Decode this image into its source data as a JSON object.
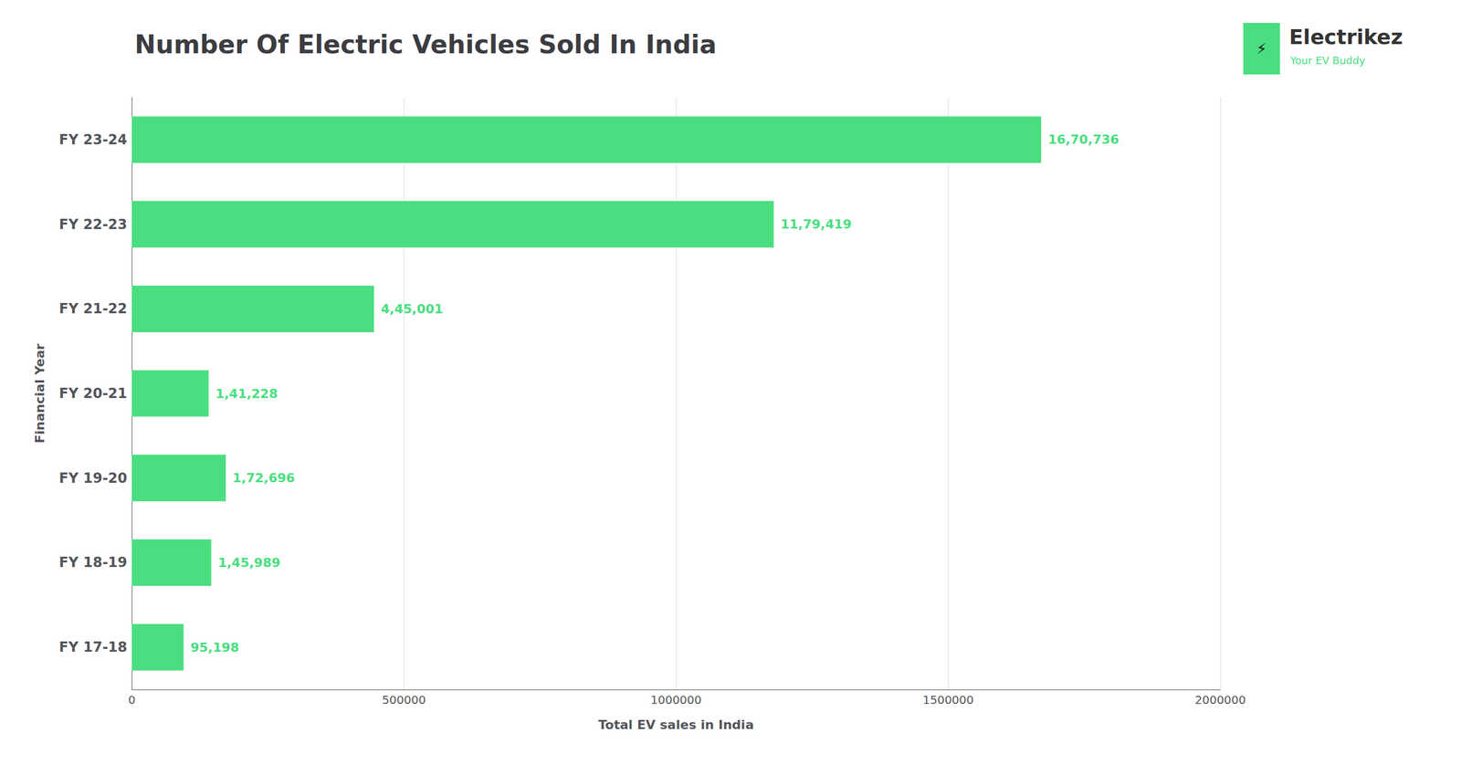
{
  "chart_data": {
    "type": "bar",
    "orientation": "horizontal",
    "title": "Number Of Electric Vehicles Sold In India",
    "xlabel": "Total EV sales in India",
    "ylabel": "Financial Year",
    "categories": [
      "FY 23-24",
      "FY 22-23",
      "FY 21-22",
      "FY 20-21",
      "FY 19-20",
      "FY 18-19",
      "FY 17-18"
    ],
    "values": [
      1670736,
      1179419,
      445001,
      141228,
      172696,
      145989,
      95198
    ],
    "value_labels": [
      "16,70,736",
      "11,79,419",
      "4,45,001",
      "1,41,228",
      "1,72,696",
      "1,45,989",
      "95,198"
    ],
    "data_labels": true,
    "color": "#4ade80",
    "xlim": [
      0,
      2000000
    ],
    "xticks": [
      0,
      500000,
      1000000,
      1500000,
      2000000
    ],
    "grid": true,
    "annotations": [
      "⚡",
      "Electrikez",
      "Your EV Buddy"
    ]
  }
}
